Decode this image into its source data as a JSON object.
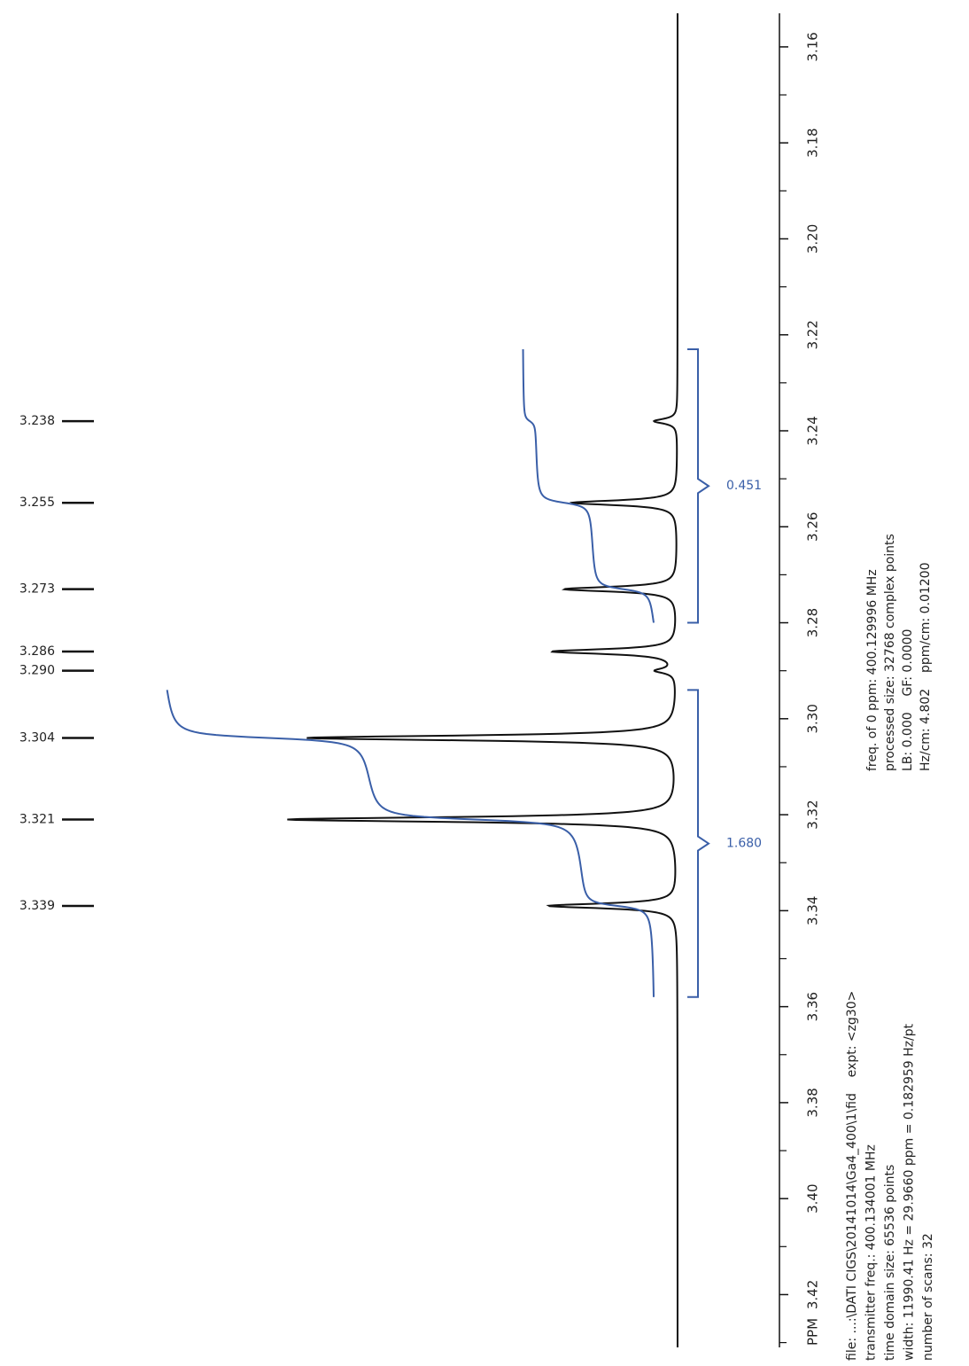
{
  "chart_data": {
    "type": "nmr-spectrum",
    "axis_label": "PPM",
    "ppm_lim": [
      3.153,
      3.431
    ],
    "ppm_ticks": [
      3.16,
      3.18,
      {
        "value": 3.2,
        "label": "3.20"
      },
      3.22,
      3.24,
      3.26,
      3.28,
      {
        "value": 3.3,
        "label": "3.30"
      },
      3.32,
      3.34,
      3.36,
      3.38,
      {
        "value": 3.4,
        "label": "3.40"
      },
      3.42
    ],
    "minor_ticks": [
      3.17,
      3.19,
      3.21,
      3.23,
      3.25,
      3.27,
      3.29,
      3.31,
      3.33,
      3.35,
      3.37,
      3.39,
      3.41,
      3.43
    ],
    "spectrum_color": "#111111",
    "integral_color": "#3a5fa8",
    "peaks": [
      {
        "ppm": 3.238,
        "height": 6
      },
      {
        "ppm": 3.255,
        "height": 27
      },
      {
        "ppm": 3.273,
        "height": 29
      },
      {
        "ppm": 3.286,
        "height": 32
      },
      {
        "ppm": 3.29,
        "label": "3.290",
        "height": 5
      },
      {
        "ppm": 3.304,
        "height": 95
      },
      {
        "ppm": 3.321,
        "height": 100
      },
      {
        "ppm": 3.339,
        "height": 33
      }
    ],
    "integrals": [
      {
        "from": 3.223,
        "to": 3.28,
        "value": 0.451
      },
      {
        "from": 3.294,
        "to": 3.358,
        "value": 1.68,
        "label": "1.680"
      }
    ],
    "parameters": [
      "freq. of 0 ppm: 400.129996 MHz",
      "processed size: 32768 complex points",
      "LB: 0.000    GF: 0.0000",
      "Hz/cm: 4.802    ppm/cm: 0.01200"
    ],
    "file_info": [
      "file: ...:\\DATI CIGS\\20141014\\Ga4_400\\1\\fid    expt: <zg30>",
      "transmitter freq.: 400.134001 MHz",
      "time domain size: 65536 points",
      "width: 11990.41 Hz = 29.9660 ppm = 0.182959 Hz/pt",
      "number of scans: 32"
    ]
  }
}
